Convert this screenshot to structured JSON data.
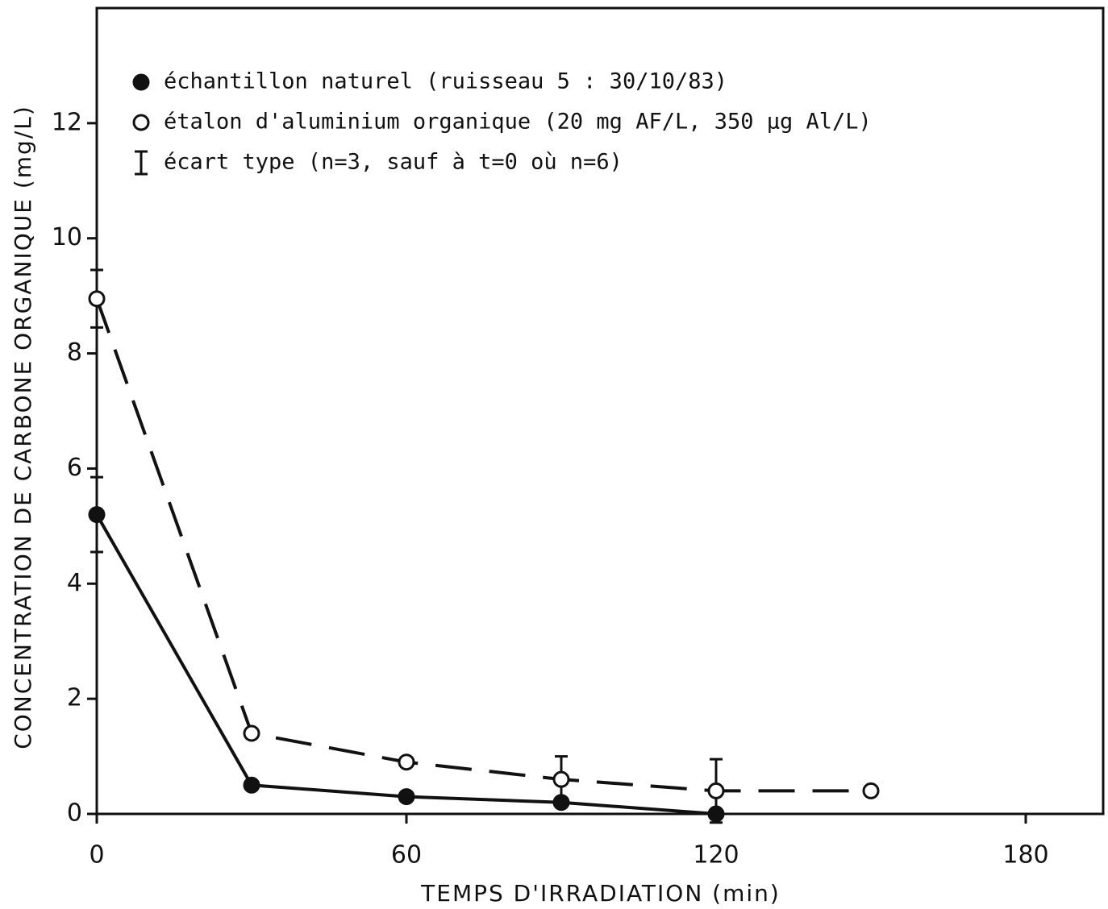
{
  "chart_data": {
    "type": "line",
    "x_label": "TEMPS D'IRRADIATION (min)",
    "y_label": "CONCENTRATION DE CARBONE ORGANIQUE (mg/L)",
    "x": [
      0,
      30,
      60,
      90,
      120,
      150
    ],
    "series": [
      {
        "name": "échantillon naturel (ruisseau 5 : 30/10/83)",
        "color": "#111111",
        "marker": "filled",
        "line_style": "solid",
        "values": [
          5.2,
          0.5,
          0.3,
          0.2,
          0,
          null
        ],
        "errors": [
          0.65,
          null,
          null,
          null,
          null,
          null
        ]
      },
      {
        "name": "étalon d'aluminium organique (20 mg AF/L, 350 µg Al/L)",
        "color": "#111111",
        "marker": "open",
        "line_style": "dashed",
        "values": [
          8.95,
          1.4,
          0.9,
          0.6,
          0.4,
          0.4
        ],
        "errors": [
          0.5,
          null,
          null,
          0.4,
          0.55,
          null
        ]
      }
    ],
    "error_legend": "écart type (n=3, sauf à t=0 où n=6)",
    "xlim": [
      0,
      195
    ],
    "xticks": [
      0,
      60,
      120,
      180
    ],
    "ylim": [
      0,
      14
    ],
    "yticks": [
      0,
      2,
      4,
      6,
      8,
      10,
      12
    ],
    "grid": false,
    "legend": "upper left"
  }
}
